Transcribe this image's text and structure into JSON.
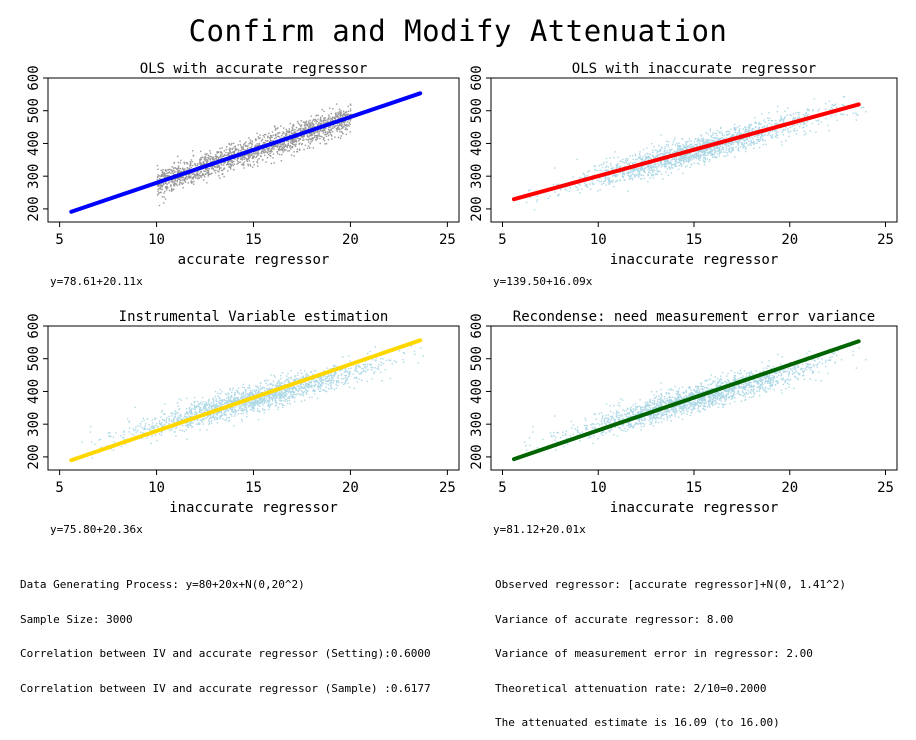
{
  "title": "Confirm and Modify Attenuation",
  "colors": {
    "scatter_light": "#add8e6",
    "scatter_gray": "#999999"
  },
  "chart_data": [
    {
      "type": "scatter",
      "title": "OLS with accurate regressor",
      "xlabel": "accurate regressor",
      "ylabel": "",
      "xlim": [
        4.4,
        25.6
      ],
      "ylim": [
        160,
        600
      ],
      "xticks": [
        5,
        10,
        15,
        20,
        25
      ],
      "yticks": [
        200,
        300,
        400,
        500,
        600
      ],
      "scatter": {
        "x_range": [
          10,
          20
        ],
        "color": "#999999",
        "n": 3000
      },
      "fit": {
        "name": "y=78.61+20.11x",
        "intercept": 78.61,
        "slope": 20.11,
        "x": [
          5.6,
          23.6
        ],
        "color": "#0000ff"
      }
    },
    {
      "type": "scatter",
      "title": "OLS with inaccurate regressor",
      "xlabel": "inaccurate regressor",
      "ylabel": "",
      "xlim": [
        4.4,
        25.6
      ],
      "ylim": [
        160,
        600
      ],
      "xticks": [
        5,
        10,
        15,
        20,
        25
      ],
      "yticks": [
        200,
        300,
        400,
        500,
        600
      ],
      "scatter": {
        "x_range": [
          6,
          24
        ],
        "color": "#add8e6",
        "n": 3000
      },
      "fit": {
        "name": "y=139.50+16.09x",
        "intercept": 139.5,
        "slope": 16.09,
        "x": [
          5.6,
          23.6
        ],
        "color": "#ff0000"
      }
    },
    {
      "type": "scatter",
      "title": "Instrumental Variable estimation",
      "xlabel": "inaccurate regressor",
      "ylabel": "",
      "xlim": [
        4.4,
        25.6
      ],
      "ylim": [
        160,
        600
      ],
      "xticks": [
        5,
        10,
        15,
        20,
        25
      ],
      "yticks": [
        200,
        300,
        400,
        500,
        600
      ],
      "scatter": {
        "x_range": [
          6,
          24
        ],
        "color": "#add8e6",
        "n": 3000
      },
      "fit": {
        "name": "y=75.80+20.36x",
        "intercept": 75.8,
        "slope": 20.36,
        "x": [
          5.6,
          23.6
        ],
        "color": "#ffd700"
      }
    },
    {
      "type": "scatter",
      "title": "Recondense: need measurement error variance",
      "xlabel": "inaccurate regressor",
      "ylabel": "",
      "xlim": [
        4.4,
        25.6
      ],
      "ylim": [
        160,
        600
      ],
      "xticks": [
        5,
        10,
        15,
        20,
        25
      ],
      "yticks": [
        200,
        300,
        400,
        500,
        600
      ],
      "scatter": {
        "x_range": [
          6,
          24
        ],
        "color": "#add8e6",
        "n": 3000
      },
      "fit": {
        "name": "y=81.12+20.01x",
        "intercept": 81.12,
        "slope": 20.01,
        "x": [
          5.6,
          23.6
        ],
        "color": "#006400"
      }
    }
  ],
  "notes_left": [
    "Data Generating Process: y=80+20x+N(0,20^2)",
    "Sample Size: 3000",
    "Correlation between IV and accurate regressor (Setting):0.6000",
    "Correlation between IV and accurate regressor (Sample) :0.6177"
  ],
  "notes_right": [
    "Observed regressor: [accurate regressor]+N(0, 1.41^2)",
    "Variance of accurate regressor: 8.00",
    "Variance of measurement error in regressor: 2.00",
    "Theoretical attenuation rate: 2/10=0.2000",
    "The attenuated estimate is 16.09 (to 16.00)"
  ]
}
